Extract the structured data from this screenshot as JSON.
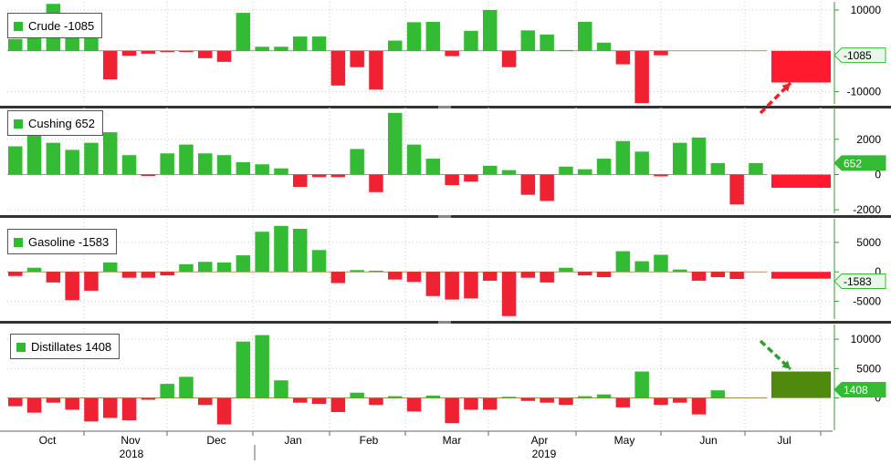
{
  "colors": {
    "up": "#33bb33",
    "down": "#ee2233",
    "last_down": "#ff1a2e",
    "last_up": "#4f8a0d",
    "separator": "#333333",
    "grid": "#c8c8c8"
  },
  "x_axis": {
    "months": [
      "Oct",
      "Nov",
      "Dec",
      "Jan",
      "Feb",
      "Mar",
      "Apr",
      "May",
      "Jun",
      "Jul"
    ],
    "years": [
      "2018",
      "2019"
    ]
  },
  "chart_data": [
    {
      "type": "bar",
      "name": "Crude",
      "latest_label": "Crude -1085",
      "latest_value": -1085,
      "value_tag": "-1085",
      "ylim": [
        -13000,
        12000
      ],
      "ticks": [
        10000,
        0,
        -10000
      ],
      "tick_labels": [
        "10000",
        "",
        "-10000"
      ],
      "values": [
        2900,
        5100,
        11500,
        4500,
        3500,
        -7000,
        -1200,
        -700,
        -300,
        -300,
        -1800,
        -2700,
        9300,
        1000,
        1000,
        3500,
        3500,
        -8500,
        -4000,
        -9500,
        2500,
        7000,
        7100,
        -1300,
        4900,
        10000,
        -4000,
        5000,
        4000,
        200,
        7100,
        2000,
        -3300,
        -12800,
        -1100
      ],
      "latest_bar": -7750
    },
    {
      "type": "bar",
      "name": "Cushing",
      "latest_label": "Cushing 652",
      "latest_value": 652,
      "value_tag": "652",
      "ylim": [
        -2200,
        3800
      ],
      "ticks": [
        2000,
        0,
        -2000
      ],
      "tick_labels": [
        "2000",
        "0",
        "-2000"
      ],
      "values": [
        1600,
        2400,
        1800,
        1400,
        1800,
        2400,
        1100,
        -80,
        1200,
        1700,
        1200,
        1100,
        700,
        580,
        350,
        -700,
        -150,
        -150,
        1450,
        -1000,
        3500,
        1700,
        900,
        -600,
        -400,
        500,
        250,
        -1150,
        -1500,
        450,
        300,
        900,
        1900,
        1300,
        -100,
        1800,
        2100,
        650,
        -1700,
        650
      ],
      "latest_bar": -750
    },
    {
      "type": "bar",
      "name": "Gasoline",
      "latest_label": "Gasoline -1583",
      "latest_value": -1583,
      "value_tag": "-1583",
      "ylim": [
        -8000,
        9000
      ],
      "ticks": [
        5000,
        0,
        -5000
      ],
      "tick_labels": [
        "5000",
        "0",
        "-5000"
      ],
      "values": [
        -700,
        700,
        -1800,
        -4800,
        -3200,
        1600,
        -1000,
        -1000,
        -600,
        1300,
        1700,
        1600,
        2800,
        6800,
        7800,
        7300,
        3700,
        -1900,
        300,
        200,
        -1300,
        -1700,
        -4100,
        -4700,
        -4500,
        -1500,
        -7500,
        -1000,
        -1800,
        700,
        -600,
        -900,
        3500,
        1800,
        2900,
        400,
        -1500,
        -900,
        -1200
      ],
      "latest_bar": -1150
    },
    {
      "type": "bar",
      "name": "Distillates",
      "latest_label": "Distillates 1408",
      "latest_value": 1408,
      "value_tag": "1408",
      "ylim": [
        -5500,
        12500
      ],
      "ticks": [
        10000,
        5000,
        0
      ],
      "tick_labels": [
        "10000",
        "5000",
        "0"
      ],
      "values": [
        -1400,
        -2500,
        -800,
        -2000,
        -4000,
        -3400,
        -3800,
        -300,
        2400,
        3600,
        -1200,
        -4500,
        9600,
        10700,
        3000,
        -800,
        -1000,
        -2400,
        900,
        -1200,
        300,
        -2300,
        400,
        -4300,
        -2000,
        -2000,
        200,
        -500,
        -800,
        -1200,
        300,
        600,
        -1600,
        4500,
        -1200,
        -800,
        -2800,
        1300
      ],
      "latest_bar": 4500
    }
  ]
}
